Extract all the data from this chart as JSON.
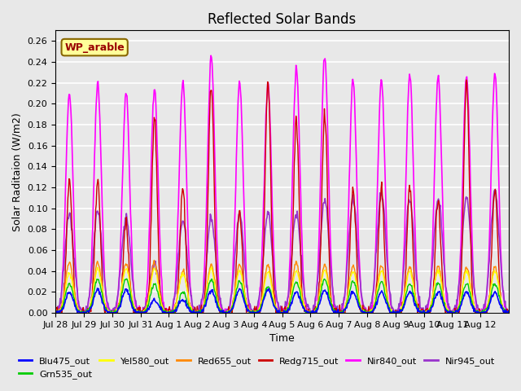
{
  "title": "Reflected Solar Bands",
  "xlabel": "Time",
  "ylabel": "Solar Raditaion (W/m2)",
  "legend_label": "WP_arable",
  "ylim": [
    0,
    0.27
  ],
  "series_colors": {
    "Blu475_out": "#0000ff",
    "Grn535_out": "#00cc00",
    "Yel580_out": "#ffff00",
    "Red655_out": "#ff8800",
    "Redg715_out": "#cc0000",
    "Nir840_out": "#ff00ff",
    "Nir945_out": "#9933cc"
  },
  "x_tick_labels": [
    "Jul 28",
    "Jul 29",
    "Jul 30",
    "Jul 31",
    "Aug 1",
    "Aug 2",
    "Aug 3",
    "Aug 4",
    "Aug 5",
    "Aug 6",
    "Aug 7",
    "Aug 8",
    "Aug 9",
    "Aug 10",
    "Aug 11",
    "Aug 12"
  ],
  "n_days": 16,
  "pts_per_day": 48,
  "plot_bg": "#e8e8e8",
  "grid_color": "#ffffff",
  "legend_box_facecolor": "#ffff99",
  "legend_box_edgecolor": "#886600",
  "legend_text_color": "#990000",
  "nir840_peaks": [
    0.21,
    0.22,
    0.21,
    0.215,
    0.22,
    0.245,
    0.22,
    0.22,
    0.233,
    0.246,
    0.222,
    0.222,
    0.228,
    0.226,
    0.226,
    0.228
  ],
  "nir945_peaks": [
    0.095,
    0.097,
    0.092,
    0.048,
    0.088,
    0.09,
    0.093,
    0.095,
    0.095,
    0.108,
    0.108,
    0.115,
    0.108,
    0.11,
    0.11,
    0.117
  ],
  "redg715_peaks": [
    0.125,
    0.127,
    0.085,
    0.185,
    0.12,
    0.218,
    0.095,
    0.218,
    0.185,
    0.19,
    0.12,
    0.12,
    0.12,
    0.105,
    0.22,
    0.12
  ],
  "red655_peaks": [
    0.048,
    0.048,
    0.047,
    0.048,
    0.04,
    0.046,
    0.046,
    0.046,
    0.048,
    0.046,
    0.045,
    0.045,
    0.044,
    0.044,
    0.044,
    0.044
  ],
  "yel580_peaks": [
    0.038,
    0.042,
    0.042,
    0.042,
    0.038,
    0.042,
    0.04,
    0.039,
    0.04,
    0.04,
    0.04,
    0.04,
    0.04,
    0.04,
    0.04,
    0.04
  ],
  "grn535_peaks": [
    0.028,
    0.032,
    0.032,
    0.028,
    0.02,
    0.032,
    0.03,
    0.025,
    0.03,
    0.032,
    0.03,
    0.03,
    0.028,
    0.028,
    0.028,
    0.028
  ],
  "blu475_peaks": [
    0.02,
    0.022,
    0.022,
    0.012,
    0.012,
    0.022,
    0.022,
    0.022,
    0.02,
    0.022,
    0.02,
    0.02,
    0.02,
    0.02,
    0.02,
    0.02
  ],
  "yticks": [
    0.0,
    0.02,
    0.04,
    0.06,
    0.08,
    0.1,
    0.12,
    0.14,
    0.16,
    0.18,
    0.2,
    0.22,
    0.24,
    0.26
  ]
}
